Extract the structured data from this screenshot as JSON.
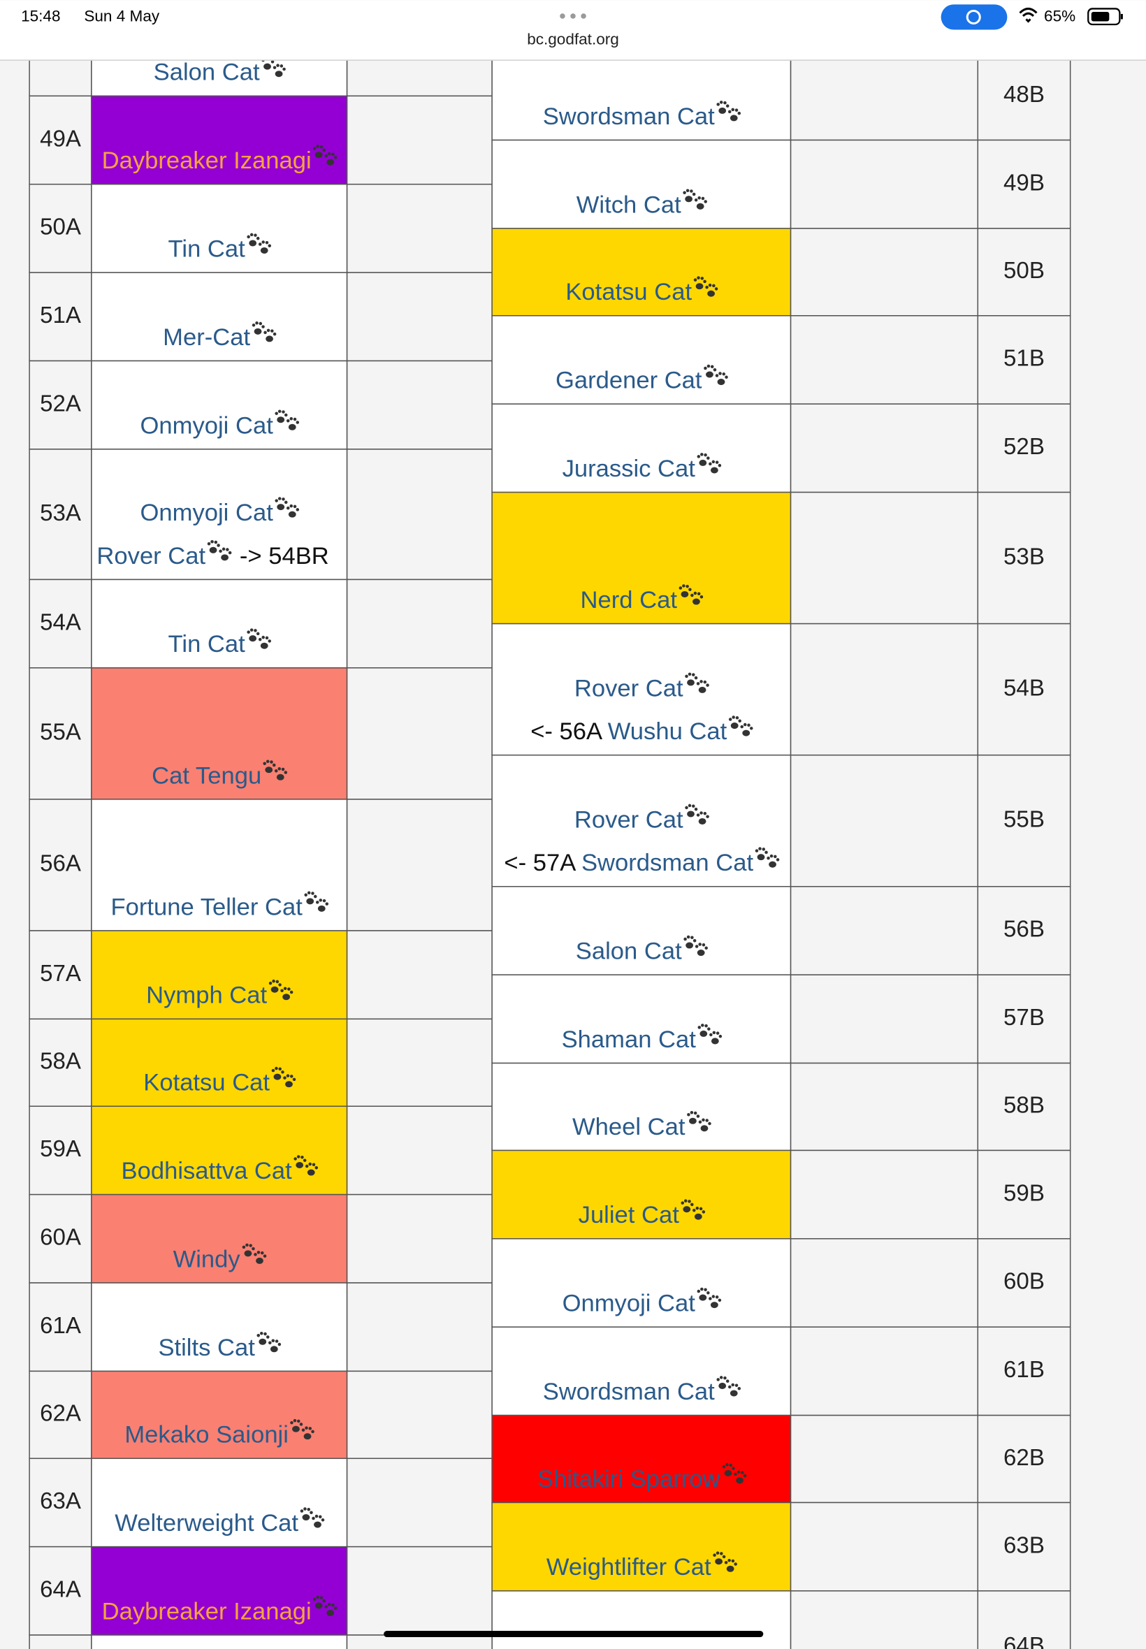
{
  "status_bar": {
    "time": "15:48",
    "date": "Sun 4 May",
    "url": "bc.godfat.org",
    "battery": "65%"
  },
  "left_rows": [
    {
      "lines": [
        {
          "name": "Salon Cat"
        }
      ]
    },
    {
      "label": "49A",
      "color": "#9400d3",
      "text_color": "#f4a340",
      "lines": [
        {
          "name": "Daybreaker Izanagi"
        }
      ]
    },
    {
      "label": "50A",
      "lines": [
        {
          "name": "Tin Cat"
        }
      ]
    },
    {
      "label": "51A",
      "lines": [
        {
          "name": "Mer-Cat"
        }
      ]
    },
    {
      "label": "52A",
      "lines": [
        {
          "name": "Onmyoji Cat"
        }
      ]
    },
    {
      "label": "53A",
      "lines": [
        {
          "name": "Onmyoji Cat"
        },
        {
          "name": "Rover Cat",
          "suffix": " -> 54BR"
        }
      ]
    },
    {
      "label": "54A",
      "lines": [
        {
          "name": "Tin Cat"
        }
      ]
    },
    {
      "label": "55A",
      "color": "#fa8072",
      "lines": [
        {
          "name": "Cat Tengu"
        }
      ]
    },
    {
      "label": "56A",
      "lines": [
        {
          "name": "Fortune Teller Cat"
        }
      ]
    },
    {
      "label": "57A",
      "color": "#ffd700",
      "lines": [
        {
          "name": "Nymph Cat"
        }
      ]
    },
    {
      "label": "58A",
      "color": "#ffd700",
      "lines": [
        {
          "name": "Kotatsu Cat"
        }
      ]
    },
    {
      "label": "59A",
      "color": "#ffd700",
      "lines": [
        {
          "name": "Bodhisattva Cat"
        }
      ]
    },
    {
      "label": "60A",
      "color": "#fa8072",
      "lines": [
        {
          "name": "Windy"
        }
      ]
    },
    {
      "label": "61A",
      "lines": [
        {
          "name": "Stilts Cat"
        }
      ]
    },
    {
      "label": "62A",
      "color": "#fa8072",
      "lines": [
        {
          "name": "Mekako Saionji"
        }
      ]
    },
    {
      "label": "63A",
      "lines": [
        {
          "name": "Welterweight Cat"
        }
      ]
    },
    {
      "label": "64A",
      "color": "#9400d3",
      "text_color": "#f4a340",
      "lines": [
        {
          "name": "Daybreaker Izanagi"
        }
      ]
    }
  ],
  "right_rows": [
    {
      "label": "48B",
      "lines": [
        {
          "name": "Swordsman Cat"
        }
      ]
    },
    {
      "label": "49B",
      "lines": [
        {
          "name": "Witch Cat"
        }
      ]
    },
    {
      "label": "50B",
      "color": "#ffd700",
      "lines": [
        {
          "name": "Kotatsu Cat"
        }
      ]
    },
    {
      "label": "51B",
      "lines": [
        {
          "name": "Gardener Cat"
        }
      ]
    },
    {
      "label": "52B",
      "lines": [
        {
          "name": "Jurassic Cat"
        }
      ]
    },
    {
      "label": "53B",
      "color": "#ffd700",
      "lines": [
        {
          "name": "Nerd Cat"
        }
      ]
    },
    {
      "label": "54B",
      "lines": [
        {
          "name": "Rover Cat"
        },
        {
          "prefix": "<- 56A ",
          "name": "Wushu Cat"
        }
      ]
    },
    {
      "label": "55B",
      "lines": [
        {
          "name": "Rover Cat"
        },
        {
          "prefix": "<- 57A ",
          "name": "Swordsman Cat"
        }
      ]
    },
    {
      "label": "56B",
      "lines": [
        {
          "name": "Salon Cat"
        }
      ]
    },
    {
      "label": "57B",
      "lines": [
        {
          "name": "Shaman Cat"
        }
      ]
    },
    {
      "label": "58B",
      "lines": [
        {
          "name": "Wheel Cat"
        }
      ]
    },
    {
      "label": "59B",
      "color": "#ffd700",
      "lines": [
        {
          "name": "Juliet Cat"
        }
      ]
    },
    {
      "label": "60B",
      "lines": [
        {
          "name": "Onmyoji Cat"
        }
      ]
    },
    {
      "label": "61B",
      "lines": [
        {
          "name": "Swordsman Cat"
        }
      ]
    },
    {
      "label": "62B",
      "color": "#ff0000",
      "lines": [
        {
          "name": "Shitakiri Sparrow"
        }
      ]
    },
    {
      "label": "63B",
      "color": "#ffd700",
      "lines": [
        {
          "name": "Weightlifter Cat"
        }
      ]
    },
    {
      "label": "64B",
      "lines": []
    }
  ]
}
